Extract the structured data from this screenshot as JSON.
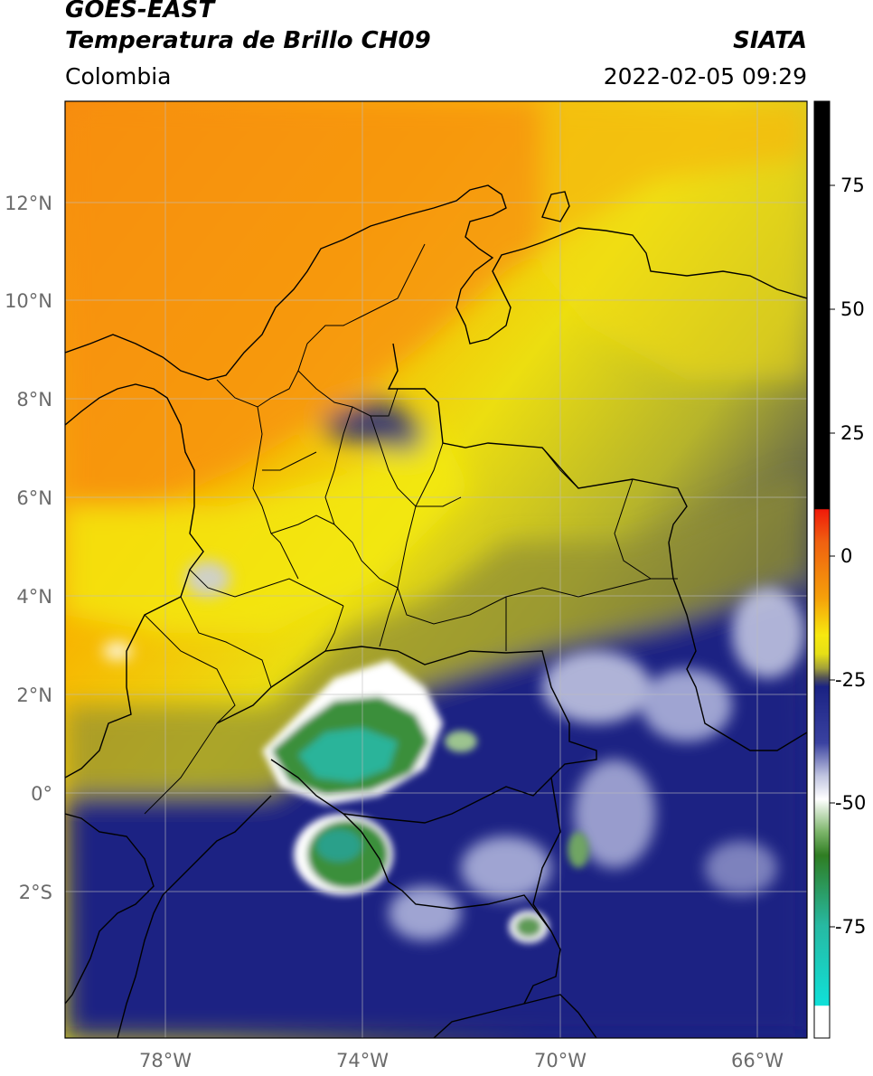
{
  "header": {
    "satellite": "GOES-EAST",
    "product": "Temperatura de Brillo CH09",
    "organization": "SIATA",
    "region": "Colombia",
    "datetime": "2022-02-05 09:29"
  },
  "map": {
    "lat_labels": [
      "12°N",
      "10°N",
      "8°N",
      "6°N",
      "4°N",
      "2°N",
      "0°",
      "2°S"
    ],
    "lon_labels": [
      "78°W",
      "74°W",
      "70°W",
      "66°W"
    ]
  },
  "colorbar": {
    "ticks": [
      "75",
      "50",
      "25",
      "0",
      "-25",
      "-50",
      "-75"
    ],
    "colors": {
      "black": "#000000",
      "red": "#e8201a",
      "orange": "#f58a0a",
      "yellow": "#f3e80f",
      "olive": "#8f8f33",
      "navy": "#1a2283",
      "white": "#ffffff",
      "green": "#3d8a2e",
      "cyan": "#18d6cf"
    }
  }
}
